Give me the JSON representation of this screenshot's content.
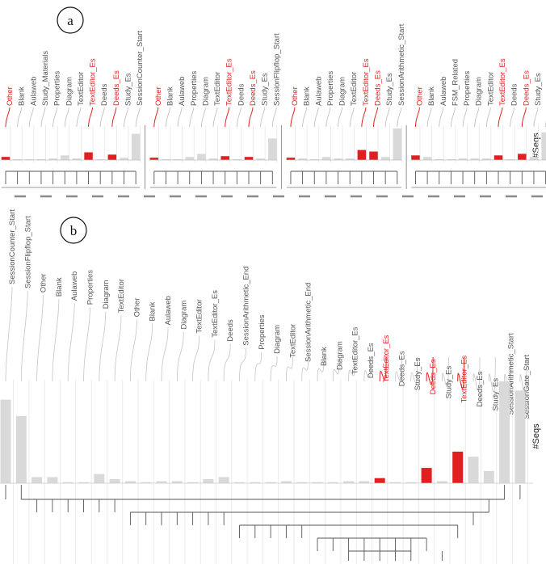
{
  "colors": {
    "highlight": "#e02020",
    "base": "#d9d9d9",
    "label": "#555555",
    "line": "#555555",
    "col_line": "#e6e6e6"
  },
  "chart_data": [
    {
      "panel": "a",
      "type": "bar",
      "ylabel": "#Seqs",
      "groups": [
        {
          "categories": [
            "Other",
            "Blank",
            "Aulaweb",
            "Study_Materials",
            "Properties",
            "Diagram",
            "TextEditor",
            "TextEditor_Es",
            "Deeds",
            "Deeds_Es",
            "Study_Es",
            "SessionCounter_Start"
          ],
          "values": [
            4,
            1,
            1,
            1,
            2,
            6,
            2,
            10,
            1,
            7,
            3,
            34
          ],
          "highlight": [
            true,
            false,
            false,
            false,
            false,
            false,
            false,
            true,
            false,
            true,
            false,
            false
          ]
        },
        {
          "categories": [
            "Other",
            "Blank",
            "Aulaweb",
            "Properties",
            "Diagram",
            "TextEditor",
            "TextEditor_Es",
            "Deeds",
            "Deeds_Es",
            "Study_Es",
            "SessionFlipflop_Start"
          ],
          "values": [
            3,
            1,
            1,
            4,
            8,
            2,
            5,
            1,
            4,
            2,
            28
          ],
          "highlight": [
            true,
            false,
            false,
            false,
            false,
            false,
            true,
            false,
            true,
            false,
            false
          ]
        },
        {
          "categories": [
            "Other",
            "Blank",
            "Aulaweb",
            "Properties",
            "Diagram",
            "TextEditor",
            "TextEditor_Es",
            "Deeds_Es",
            "Study_Es",
            "SessionArithmetic_Start"
          ],
          "values": [
            3,
            2,
            1,
            4,
            2,
            2,
            13,
            11,
            4,
            41
          ],
          "highlight": [
            true,
            false,
            false,
            false,
            false,
            false,
            true,
            true,
            false,
            false
          ]
        },
        {
          "categories": [
            "Other",
            "Blank",
            "Aulaweb",
            "FSM_Related",
            "Properties",
            "Diagram",
            "TextEditor",
            "TextEditor_Es",
            "Deeds",
            "Deeds_Es",
            "Study_Es",
            "SessionGate_Start"
          ],
          "values": [
            6,
            4,
            1,
            1,
            2,
            2,
            2,
            6,
            1,
            8,
            4,
            36
          ],
          "highlight": [
            true,
            false,
            false,
            false,
            false,
            false,
            false,
            true,
            false,
            true,
            false,
            false
          ]
        }
      ]
    },
    {
      "panel": "b",
      "type": "bar",
      "ylabel": "#Seqs",
      "categories": [
        "SessionCounter_Start",
        "SessionFlipflop_Start",
        "Other",
        "Blank",
        "Aulaweb",
        "Properties",
        "Diagram",
        "TextEditor",
        "Other",
        "Blank",
        "Aulaweb",
        "Diagram",
        "TextEditor",
        "TextEditor_Es",
        "Deeds",
        "SessionArithmetic_End",
        "Properties",
        "Diagram",
        "TextEditor",
        "SessionArithmetic_End",
        "Blank",
        "Diagram",
        "TextEditor_Es",
        "Deeds_Es",
        "TextEditor_Es",
        "Deeds_Es",
        "Study_Es",
        "Deeds_Es",
        "Study_Es",
        "TextEditor_Es",
        "Deeds_Es",
        "Study_Es",
        "SessionArithmetic_Start",
        "SessionGate_Start"
      ],
      "values": [
        82,
        66,
        6,
        6,
        1,
        1,
        9,
        4,
        2,
        1,
        2,
        2,
        1,
        4,
        6,
        1,
        1,
        1,
        2,
        1,
        1,
        1,
        2,
        2,
        5,
        1,
        1,
        15,
        2,
        31,
        26,
        12,
        100,
        91
      ],
      "highlight": [
        false,
        false,
        false,
        false,
        false,
        false,
        false,
        false,
        false,
        false,
        false,
        false,
        false,
        false,
        false,
        false,
        false,
        false,
        false,
        false,
        false,
        false,
        false,
        false,
        true,
        false,
        false,
        true,
        false,
        true,
        false,
        false,
        false,
        false
      ]
    }
  ]
}
